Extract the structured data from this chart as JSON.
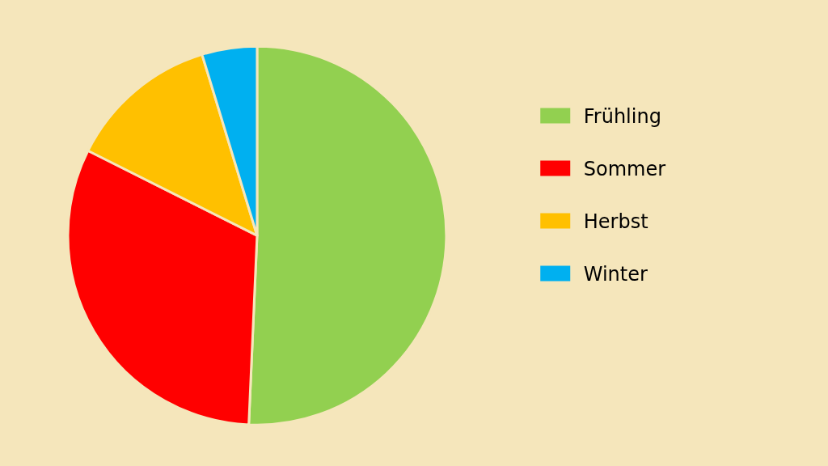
{
  "chart_data": {
    "type": "pie",
    "categories": [
      "Frühling",
      "Sommer",
      "Herbst",
      "Winter"
    ],
    "values": [
      50.7,
      31.7,
      12.9,
      4.7
    ],
    "colors": [
      "#92d050",
      "#ff0000",
      "#ffc000",
      "#00b0f0"
    ],
    "legend": "right"
  }
}
